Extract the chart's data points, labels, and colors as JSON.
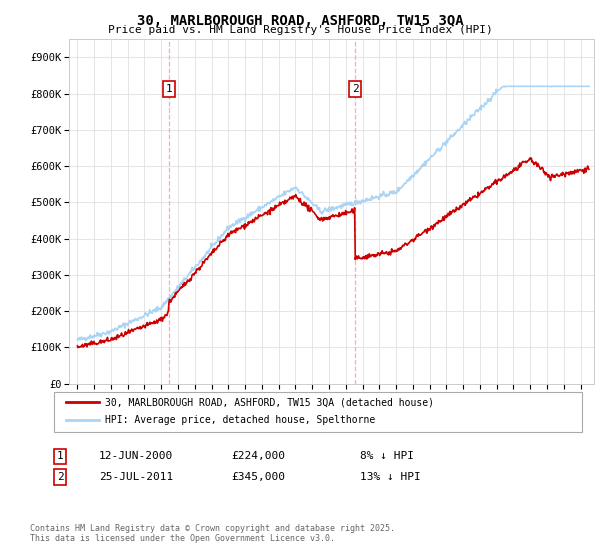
{
  "title": "30, MARLBOROUGH ROAD, ASHFORD, TW15 3QA",
  "subtitle": "Price paid vs. HM Land Registry's House Price Index (HPI)",
  "ylim": [
    0,
    950000
  ],
  "yticks": [
    0,
    100000,
    200000,
    300000,
    400000,
    500000,
    600000,
    700000,
    800000,
    900000
  ],
  "ytick_labels": [
    "£0",
    "£100K",
    "£200K",
    "£300K",
    "£400K",
    "£500K",
    "£600K",
    "£700K",
    "£800K",
    "£900K"
  ],
  "hpi_color": "#aad4f5",
  "price_color": "#cc0000",
  "vline_color": "#ffaaaa",
  "background_color": "#ffffff",
  "grid_color": "#e0e0e0",
  "legend_label_red": "30, MARLBOROUGH ROAD, ASHFORD, TW15 3QA (detached house)",
  "legend_label_blue": "HPI: Average price, detached house, Spelthorne",
  "annotation1_date": "12-JUN-2000",
  "annotation1_price": "£224,000",
  "annotation1_hpi": "8% ↓ HPI",
  "annotation2_date": "25-JUL-2011",
  "annotation2_price": "£345,000",
  "annotation2_hpi": "13% ↓ HPI",
  "footer": "Contains HM Land Registry data © Crown copyright and database right 2025.\nThis data is licensed under the Open Government Licence v3.0.",
  "purchase1_year": 2000.45,
  "purchase1_price": 224000,
  "purchase2_year": 2011.56,
  "purchase2_price": 345000,
  "start_year": 1994.5,
  "end_year": 2025.8
}
